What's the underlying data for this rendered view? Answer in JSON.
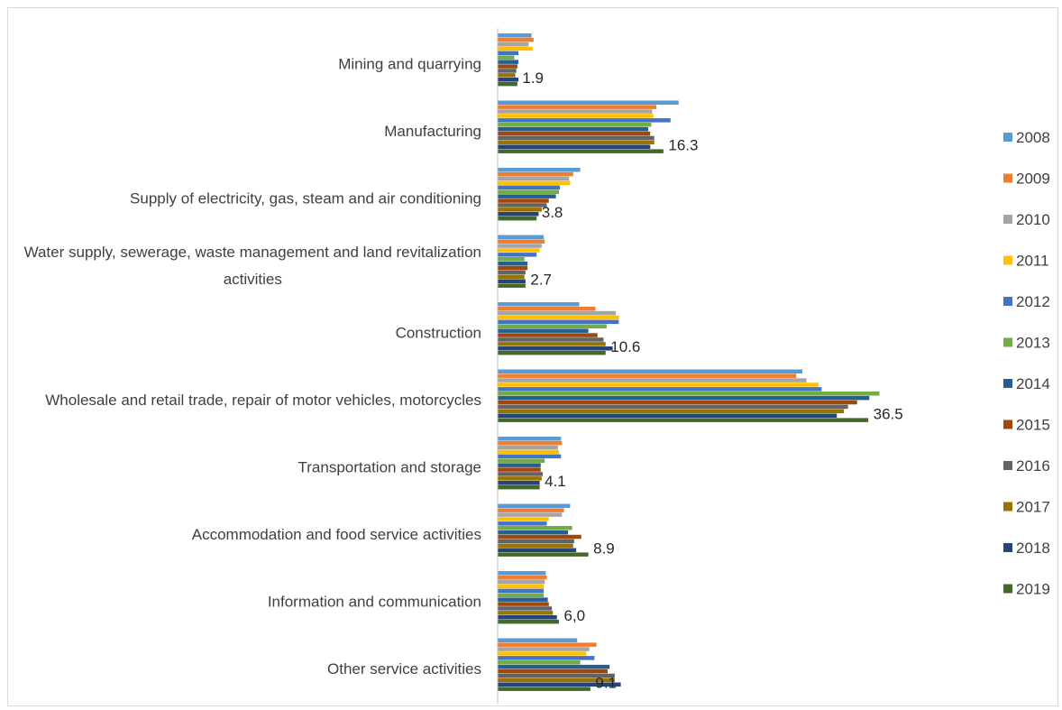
{
  "chart_data": {
    "type": "bar",
    "orientation": "horizontal",
    "title": "",
    "xlabel": "",
    "ylabel": "",
    "xlim": [
      0,
      37
    ],
    "grid": false,
    "legend_position": "right",
    "categories": [
      "Mining and quarrying",
      "Manufacturing",
      "Supply of electricity, gas, steam and air conditioning",
      "Water supply, sewerage, waste management and land revitalization activities",
      "Construction",
      "Wholesale and retail trade, repair of motor vehicles, motorcycles",
      "Transportation and storage",
      "Accommodation and food service activities",
      "Information and communication",
      "Other service activities"
    ],
    "value_labels": [
      "1.9",
      "16.3",
      "3.8",
      "2.7",
      "10.6",
      "36.5",
      "4.1",
      "8.9",
      "6,0",
      "9.1"
    ],
    "series": [
      {
        "name": "2008",
        "color": "#5b9bd5",
        "values": [
          3.3,
          17.8,
          8.1,
          4.5,
          8.0,
          30.0,
          6.2,
          7.1,
          4.7,
          7.8
        ]
      },
      {
        "name": "2009",
        "color": "#ed7d31",
        "values": [
          3.5,
          15.6,
          7.4,
          4.6,
          9.6,
          29.4,
          6.3,
          6.5,
          4.8,
          9.7
        ]
      },
      {
        "name": "2010",
        "color": "#a5a5a5",
        "values": [
          3.0,
          15.2,
          7.0,
          4.3,
          11.6,
          30.4,
          5.9,
          6.3,
          4.6,
          9.0
        ]
      },
      {
        "name": "2011",
        "color": "#ffc000",
        "values": [
          3.4,
          15.3,
          7.1,
          4.1,
          11.9,
          31.6,
          6.0,
          5.0,
          4.5,
          8.7
        ]
      },
      {
        "name": "2012",
        "color": "#4472c4",
        "values": [
          2.0,
          17.0,
          6.1,
          3.8,
          11.9,
          31.9,
          6.2,
          4.8,
          4.5,
          9.5
        ]
      },
      {
        "name": "2013",
        "color": "#70ad47",
        "values": [
          1.6,
          15.1,
          6.0,
          2.6,
          10.7,
          37.6,
          4.6,
          7.3,
          4.5,
          8.1
        ]
      },
      {
        "name": "2014",
        "color": "#255e91",
        "values": [
          2.0,
          14.8,
          5.7,
          2.9,
          8.9,
          36.6,
          4.2,
          6.9,
          4.9,
          11.0
        ]
      },
      {
        "name": "2015",
        "color": "#9e480e",
        "values": [
          1.9,
          15.0,
          5.0,
          2.9,
          9.8,
          35.4,
          4.2,
          8.2,
          5.0,
          10.8
        ]
      },
      {
        "name": "2016",
        "color": "#636363",
        "values": [
          1.8,
          15.4,
          4.8,
          2.7,
          10.4,
          34.5,
          4.4,
          7.5,
          5.3,
          11.5
        ]
      },
      {
        "name": "2017",
        "color": "#997300",
        "values": [
          1.7,
          15.4,
          4.3,
          2.6,
          10.6,
          34.1,
          4.3,
          7.4,
          5.4,
          11.5
        ]
      },
      {
        "name": "2018",
        "color": "#264478",
        "values": [
          2.0,
          15.0,
          4.0,
          2.7,
          11.3,
          33.4,
          4.1,
          7.7,
          5.8,
          12.1
        ]
      },
      {
        "name": "2019",
        "color": "#43682b",
        "values": [
          1.9,
          16.3,
          3.8,
          2.7,
          10.6,
          36.5,
          4.1,
          8.9,
          6.0,
          9.1
        ]
      }
    ]
  }
}
